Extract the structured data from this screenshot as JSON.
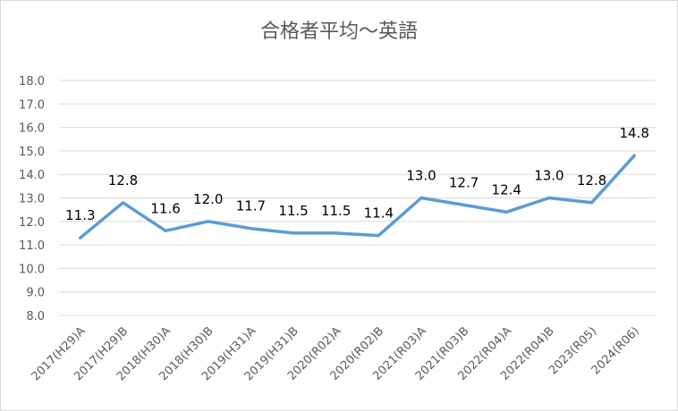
{
  "chart_data": {
    "type": "line",
    "title": "合格者平均～英語",
    "categories": [
      "2017(H29)A",
      "2017(H29)B",
      "2018(H30)A",
      "2018(H30)B",
      "2019(H31)A",
      "2019(H31)B",
      "2020(R02)A",
      "2020(R02)B",
      "2021(R03)A",
      "2021(R03)B",
      "2022(R04)A",
      "2022(R04)B",
      "2023(R05)",
      "2024(R06)"
    ],
    "series": [
      {
        "name": "英語",
        "color": "#5b9bd5",
        "values": [
          11.3,
          12.8,
          11.6,
          12.0,
          11.7,
          11.5,
          11.5,
          11.4,
          13.0,
          12.7,
          12.4,
          13.0,
          12.8,
          14.8
        ],
        "value_labels": [
          "11.3",
          "12.8",
          "11.6",
          "12.0",
          "11.7",
          "11.5",
          "11.5",
          "11.4",
          "13.0",
          "12.7",
          "12.4",
          "13.0",
          "12.8",
          "14.8"
        ]
      }
    ],
    "ylim": [
      8,
      18
    ],
    "yticks": [
      {
        "value": 8,
        "label": "8.0"
      },
      {
        "value": 9,
        "label": "9.0"
      },
      {
        "value": 10,
        "label": "10.0"
      },
      {
        "value": 11,
        "label": "11.0"
      },
      {
        "value": 12,
        "label": "12.0"
      },
      {
        "value": 13,
        "label": "13.0"
      },
      {
        "value": 14,
        "label": "14.0"
      },
      {
        "value": 15,
        "label": "15.0"
      },
      {
        "value": 16,
        "label": "16.0"
      },
      {
        "value": 17,
        "label": "17.0"
      },
      {
        "value": 18,
        "label": "18.0"
      }
    ],
    "grid": true
  }
}
